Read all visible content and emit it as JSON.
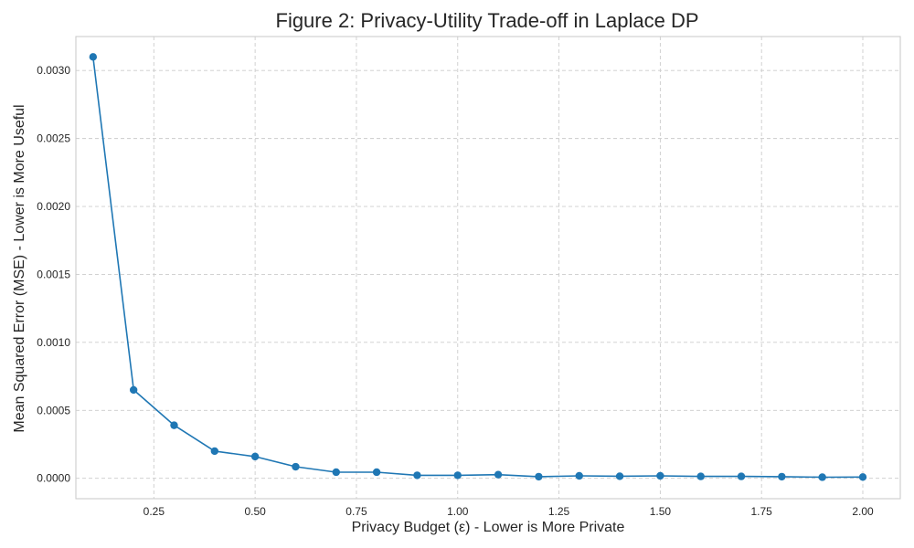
{
  "chart_data": {
    "type": "line",
    "title": "Figure 2: Privacy-Utility Trade-off in Laplace DP",
    "xlabel": "Privacy Budget (ε) - Lower is More Private",
    "ylabel": "Mean Squared Error (MSE) - Lower is More Useful",
    "xlim": [
      0.0575,
      2.0925
    ],
    "ylim": [
      -0.00015,
      0.00325
    ],
    "x_ticks": [
      0.25,
      0.5,
      0.75,
      1.0,
      1.25,
      1.5,
      1.75,
      2.0
    ],
    "x_tick_labels": [
      "0.25",
      "0.50",
      "0.75",
      "1.00",
      "1.25",
      "1.50",
      "1.75",
      "2.00"
    ],
    "y_ticks": [
      0.0,
      0.0005,
      0.001,
      0.0015,
      0.002,
      0.0025,
      0.003
    ],
    "y_tick_labels": [
      "0.0000",
      "0.0005",
      "0.0010",
      "0.0015",
      "0.0020",
      "0.0025",
      "0.0030"
    ],
    "grid": true,
    "color": "#1f77b4",
    "series": [
      {
        "x": [
          0.1,
          0.2,
          0.3,
          0.4,
          0.5,
          0.6,
          0.7,
          0.8,
          0.9,
          1.0,
          1.1,
          1.2,
          1.3,
          1.4,
          1.5,
          1.6,
          1.7,
          1.8,
          1.9,
          2.0
        ],
        "values": [
          0.0031,
          0.00065,
          0.00039,
          0.0002,
          0.00016,
          8.5e-05,
          4.5e-05,
          4.5e-05,
          2.2e-05,
          2.2e-05,
          2.7e-05,
          1.2e-05,
          1.8e-05,
          1.5e-05,
          1.8e-05,
          1.4e-05,
          1.4e-05,
          1.2e-05,
          8e-06,
          9e-06
        ]
      }
    ]
  }
}
